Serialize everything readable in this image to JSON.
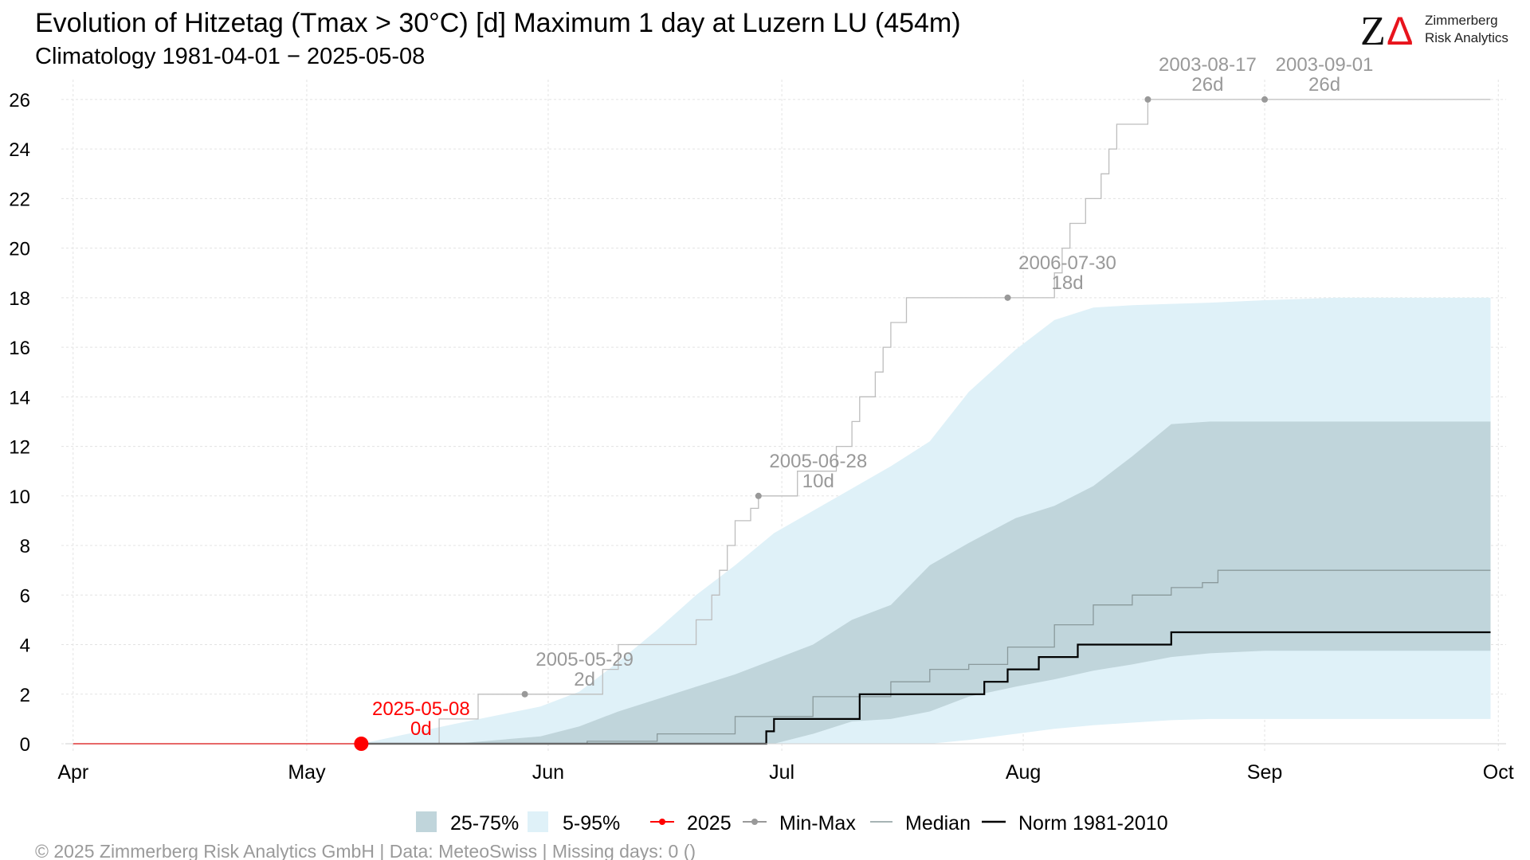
{
  "header": {
    "title": "Evolution of Hitzetag (Tmax > 30°C) [d] Maximum 1 day at Luzern  LU (454m)",
    "subtitle": "Climatology 1981-04-01 − 2025-05-08"
  },
  "logo": {
    "glyph_z": "Z",
    "glyph_delta": "Δ",
    "line1": "Zimmerberg",
    "line2": "Risk Analytics",
    "accent_color": "#e8141c"
  },
  "footer": {
    "credit": "©  2025 Zimmerberg Risk Analytics GmbH | Data: MeteoSwiss | Missing days: 0 ()"
  },
  "legend": {
    "band_25_75": "25-75%",
    "band_5_95": "5-95%",
    "current": "2025",
    "minmax": "Min-Max",
    "median": "Median",
    "norm": "Norm 1981-2010"
  },
  "colors": {
    "band_5_95": "#dff1f8",
    "band_25_75": "#c0d5db",
    "minmax": "#bdbdbd",
    "minmax_point": "#999999",
    "median": "#8a9a9c",
    "norm": "#000000",
    "current": "#ff0000",
    "annotation": "#999999",
    "grid": "#e3e3e3"
  },
  "chart_data": {
    "type": "line",
    "title": "Evolution of Hitzetag (Tmax > 30°C) [d] Maximum 1 day at Luzern  LU (454m)",
    "subtitle": "Climatology 1981-04-01 − 2025-05-08",
    "xlabel": "",
    "ylabel": "",
    "x_range": [
      "2025-04-01",
      "2025-09-30"
    ],
    "ylim": [
      0,
      26
    ],
    "y_ticks": [
      0,
      2,
      4,
      6,
      8,
      10,
      12,
      14,
      16,
      18,
      20,
      22,
      24,
      26
    ],
    "x_ticks": [
      {
        "date": "2025-04-01",
        "label": "Apr"
      },
      {
        "date": "2025-05-01",
        "label": "May"
      },
      {
        "date": "2025-06-01",
        "label": "Jun"
      },
      {
        "date": "2025-07-01",
        "label": "Jul"
      },
      {
        "date": "2025-08-01",
        "label": "Aug"
      },
      {
        "date": "2025-09-01",
        "label": "Sep"
      },
      {
        "date": "2025-10-01",
        "label": "Oct"
      }
    ],
    "grid": true,
    "legend_position": "bottom",
    "series": [
      {
        "name": "5-95%",
        "kind": "band",
        "x": [
          "2025-05-08",
          "2025-05-20",
          "2025-05-31",
          "2025-06-05",
          "2025-06-10",
          "2025-06-15",
          "2025-06-20",
          "2025-06-25",
          "2025-06-30",
          "2025-07-05",
          "2025-07-10",
          "2025-07-15",
          "2025-07-20",
          "2025-07-25",
          "2025-07-31",
          "2025-08-05",
          "2025-08-10",
          "2025-08-15",
          "2025-08-20",
          "2025-08-25",
          "2025-09-01",
          "2025-09-10",
          "2025-09-20",
          "2025-09-30"
        ],
        "lower": [
          0,
          0,
          0,
          0,
          0,
          0,
          0,
          0,
          0,
          0,
          0,
          0,
          0,
          0.15,
          0.4,
          0.6,
          0.75,
          0.85,
          0.95,
          1.0,
          1.0,
          1.0,
          1.0,
          1.0
        ],
        "upper": [
          0,
          0.8,
          1.5,
          2.1,
          3.3,
          4.6,
          6.0,
          7.2,
          8.5,
          9.4,
          10.3,
          11.2,
          12.2,
          14.2,
          15.9,
          17.1,
          17.6,
          17.7,
          17.75,
          17.8,
          17.9,
          18.0,
          18.0,
          18.0
        ]
      },
      {
        "name": "25-75%",
        "kind": "band",
        "x": [
          "2025-05-20",
          "2025-05-31",
          "2025-06-05",
          "2025-06-10",
          "2025-06-15",
          "2025-06-20",
          "2025-06-25",
          "2025-06-30",
          "2025-07-05",
          "2025-07-10",
          "2025-07-15",
          "2025-07-20",
          "2025-07-25",
          "2025-07-31",
          "2025-08-05",
          "2025-08-10",
          "2025-08-15",
          "2025-08-20",
          "2025-08-25",
          "2025-09-01",
          "2025-09-10",
          "2025-09-20",
          "2025-09-30"
        ],
        "lower": [
          0,
          0,
          0,
          0,
          0,
          0,
          0,
          0,
          0.4,
          0.9,
          1.0,
          1.3,
          1.9,
          2.3,
          2.6,
          2.95,
          3.2,
          3.5,
          3.65,
          3.75,
          3.75,
          3.75,
          3.75
        ],
        "upper": [
          0,
          0.3,
          0.7,
          1.3,
          1.8,
          2.3,
          2.8,
          3.4,
          4.0,
          5.0,
          5.6,
          7.2,
          8.1,
          9.1,
          9.6,
          10.4,
          11.6,
          12.9,
          13.0,
          13.0,
          13.0,
          13.0,
          13.0
        ]
      },
      {
        "name": "Min-Max",
        "kind": "step",
        "x": [
          "2025-05-08",
          "2025-05-18",
          "2025-05-23",
          "2025-06-08",
          "2025-06-10",
          "2025-06-20",
          "2025-06-22",
          "2025-06-23",
          "2025-06-24",
          "2025-06-25",
          "2025-06-27",
          "2025-06-28",
          "2025-07-03",
          "2025-07-08",
          "2025-07-10",
          "2025-07-11",
          "2025-07-13",
          "2025-07-14",
          "2025-07-15",
          "2025-07-17",
          "2025-07-19",
          "2025-07-20",
          "2025-07-21",
          "2025-08-05",
          "2025-08-06",
          "2025-08-07",
          "2025-08-09",
          "2025-08-11",
          "2025-08-12",
          "2025-08-13",
          "2025-08-15",
          "2025-08-17",
          "2025-09-30"
        ],
        "values": [
          0,
          1,
          2,
          3,
          4,
          5,
          6,
          7,
          8,
          9,
          9.5,
          10,
          11,
          12,
          13,
          14,
          15,
          16,
          17,
          18,
          18,
          18,
          18,
          19,
          20,
          21,
          22,
          23,
          24,
          25,
          25,
          26,
          26
        ]
      },
      {
        "name": "Median",
        "kind": "step",
        "x": [
          "2025-05-08",
          "2025-06-06",
          "2025-06-15",
          "2025-06-25",
          "2025-07-05",
          "2025-07-15",
          "2025-07-20",
          "2025-07-25",
          "2025-07-30",
          "2025-08-05",
          "2025-08-10",
          "2025-08-15",
          "2025-08-20",
          "2025-08-24",
          "2025-08-26",
          "2025-09-30"
        ],
        "values": [
          0,
          0.1,
          0.4,
          1.1,
          1.9,
          2.5,
          3.0,
          3.2,
          3.9,
          4.8,
          5.6,
          6.0,
          6.3,
          6.5,
          7.0,
          7.0
        ]
      },
      {
        "name": "Norm 1981-2010",
        "kind": "step",
        "x": [
          "2025-05-08",
          "2025-06-29",
          "2025-06-30",
          "2025-07-11",
          "2025-07-27",
          "2025-07-30",
          "2025-08-03",
          "2025-08-08",
          "2025-08-20",
          "2025-09-30"
        ],
        "values": [
          0,
          0.5,
          1,
          2,
          2.5,
          3,
          3.5,
          4,
          4.5,
          4.5
        ]
      },
      {
        "name": "2025",
        "kind": "line",
        "x": [
          "2025-04-01",
          "2025-05-08"
        ],
        "values": [
          0,
          0
        ]
      }
    ],
    "annotations": [
      {
        "date": "2025-05-08",
        "value": 0,
        "label_date": "2025-05-08",
        "label_value": "0d",
        "series": "2025"
      },
      {
        "date": "2025-05-29",
        "value": 2,
        "label_date": "2005-05-29",
        "label_value": "2d",
        "series": "Min-Max"
      },
      {
        "date": "2025-06-28",
        "value": 10,
        "label_date": "2005-06-28",
        "label_value": "10d",
        "series": "Min-Max"
      },
      {
        "date": "2025-07-30",
        "value": 18,
        "label_date": "2006-07-30",
        "label_value": "18d",
        "series": "Min-Max"
      },
      {
        "date": "2025-08-17",
        "value": 26,
        "label_date": "2003-08-17",
        "label_value": "26d",
        "series": "Min-Max"
      },
      {
        "date": "2025-09-01",
        "value": 26,
        "label_date": "2003-09-01",
        "label_value": "26d",
        "series": "Min-Max"
      }
    ]
  }
}
